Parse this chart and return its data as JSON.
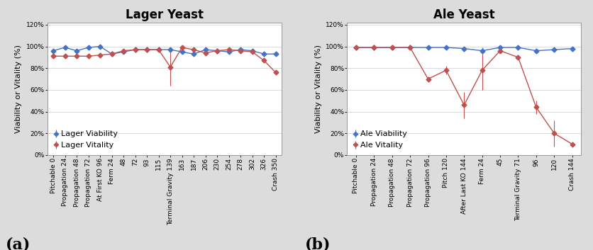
{
  "lager": {
    "title": "Lager Yeast",
    "xlabel_labels": [
      "Pitchable 0",
      "Propagation 24",
      "Propagation 48",
      "Propagation 72",
      "At First KO 96",
      "Ferm 24",
      "48",
      "72",
      "93",
      "115",
      "Terminal Gravity 139",
      "163",
      "187",
      "206",
      "230",
      "254",
      "278",
      "302",
      "326",
      "Crash 350"
    ],
    "viability": [
      0.96,
      0.99,
      0.96,
      0.99,
      1.0,
      0.93,
      0.95,
      0.97,
      0.97,
      0.97,
      0.97,
      0.95,
      0.93,
      0.97,
      0.96,
      0.95,
      0.97,
      0.96,
      0.93,
      0.93
    ],
    "vitality": [
      0.91,
      0.91,
      0.91,
      0.91,
      0.92,
      0.93,
      0.96,
      0.97,
      0.97,
      0.97,
      0.81,
      0.99,
      0.97,
      0.94,
      0.96,
      0.97,
      0.96,
      0.95,
      0.87,
      0.76
    ],
    "vitality_err": [
      0,
      0,
      0,
      0,
      0,
      0.01,
      0,
      0,
      0,
      0,
      0.17,
      0,
      0,
      0,
      0,
      0,
      0,
      0,
      0,
      0.02
    ],
    "viability_err": [
      0,
      0,
      0,
      0,
      0,
      0.01,
      0,
      0,
      0,
      0,
      0.02,
      0,
      0,
      0,
      0,
      0,
      0,
      0,
      0,
      0
    ],
    "viability_color": "#4472C4",
    "vitality_color": "#C0504D",
    "legend_viability": "Lager Viability",
    "legend_vitality": "Lager Vitality",
    "label": "(a)"
  },
  "ale": {
    "title": "Ale Yeast",
    "xlabel_labels": [
      "Pitchable 0",
      "Propagation 24",
      "Propagation 48",
      "Propagation 72",
      "Propagation 96",
      "Pitch 120",
      "After Last KO 144",
      "Ferm 24",
      "45",
      "Terminal Gravity 71",
      "96",
      "120",
      "Crash 144"
    ],
    "viability": [
      0.99,
      0.99,
      0.99,
      0.99,
      0.99,
      0.99,
      0.98,
      0.96,
      0.99,
      0.99,
      0.96,
      0.97,
      0.98
    ],
    "vitality": [
      0.99,
      0.99,
      0.99,
      0.99,
      0.7,
      0.78,
      0.46,
      0.78,
      0.96,
      0.9,
      0.44,
      0.2,
      0.1
    ],
    "vitality_err": [
      0,
      0,
      0,
      0,
      0,
      0.04,
      0.12,
      0.18,
      0,
      0,
      0.06,
      0.12,
      0
    ],
    "viability_err": [
      0,
      0,
      0,
      0,
      0,
      0,
      0.02,
      0.03,
      0,
      0,
      0,
      0,
      0
    ],
    "viability_color": "#4472C4",
    "vitality_color": "#C0504D",
    "legend_viability": "Ale Viability",
    "legend_vitality": "Ale Vitality",
    "label": "(b)"
  },
  "ylabel": "Viability or Vitality (%)",
  "ylim": [
    0,
    1.22
  ],
  "yticks": [
    0,
    0.2,
    0.4,
    0.6,
    0.8,
    1.0,
    1.2
  ],
  "background_color": "#DCDCDC",
  "plot_bg": "#FFFFFF",
  "title_fontsize": 12,
  "label_fontsize": 8,
  "tick_fontsize": 6.5,
  "legend_fontsize": 8
}
